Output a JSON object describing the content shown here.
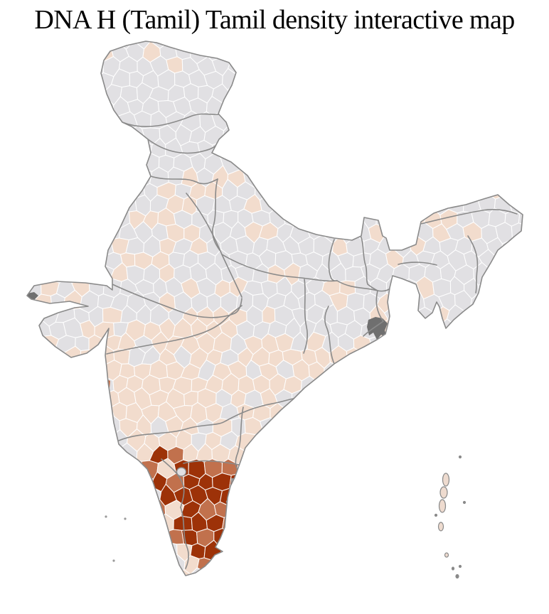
{
  "title": "DNA H (Tamil) Tamil density interactive map",
  "map": {
    "palette": {
      "background": "#ffffff",
      "district_no_data": "#e1e0e3",
      "district_low": "#f2dccd",
      "district_medium": "#c1714d",
      "district_high": "#9d3208",
      "district_border": "#ffffff",
      "state_border": "#8a8a8a",
      "delta_marsh": "#6f6f6f",
      "city_gray": "#9a9a9a",
      "island_fill": "#eedbcf"
    }
  }
}
